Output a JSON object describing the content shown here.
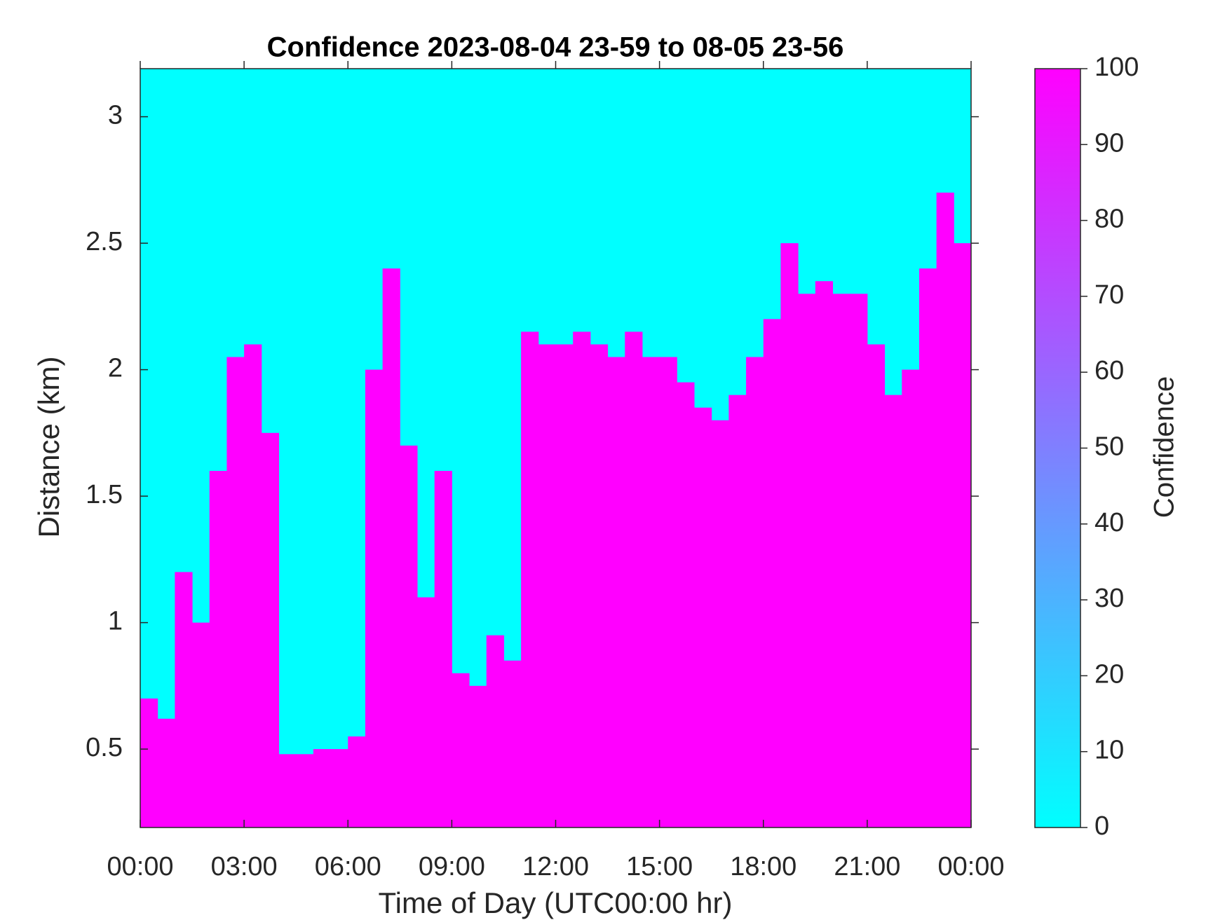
{
  "chart_data": {
    "type": "heatmap",
    "title": "Confidence 2023-08-04 23-59 to 08-05 23-56",
    "xlabel": "Time of Day (UTC00:00 hr)",
    "ylabel": "Distance (km)",
    "colorbar_label": "Confidence",
    "x_edges": [
      0,
      0.5,
      1,
      1.5,
      2,
      2.5,
      3,
      3.5,
      4,
      4.5,
      5,
      5.5,
      6,
      6.5,
      7,
      7.5,
      8,
      8.5,
      9,
      9.5,
      10,
      10.5,
      11,
      11.5,
      12,
      12.5,
      13,
      13.5,
      14,
      14.5,
      15,
      15.5,
      16,
      16.5,
      17,
      17.5,
      18,
      18.5,
      19,
      19.5,
      20,
      20.5,
      21,
      21.5,
      22,
      22.5,
      23,
      23.5,
      24
    ],
    "values": [
      0.7,
      0.62,
      1.2,
      1.0,
      1.6,
      2.05,
      2.1,
      1.75,
      0.48,
      0.48,
      0.5,
      0.5,
      0.55,
      2.0,
      2.4,
      1.7,
      1.1,
      1.6,
      0.8,
      0.75,
      0.95,
      0.85,
      2.15,
      2.1,
      2.1,
      2.15,
      2.1,
      2.05,
      2.15,
      2.05,
      2.05,
      1.95,
      1.85,
      1.8,
      1.9,
      2.05,
      2.2,
      2.5,
      2.3,
      2.35,
      2.3,
      2.3,
      2.1,
      1.9,
      2.0,
      2.4,
      2.7,
      2.5
    ],
    "xlim": [
      0,
      24
    ],
    "xticks": [
      {
        "value": 0,
        "label": "00:00"
      },
      {
        "value": 3,
        "label": "03:00"
      },
      {
        "value": 6,
        "label": "06:00"
      },
      {
        "value": 9,
        "label": "09:00"
      },
      {
        "value": 12,
        "label": "12:00"
      },
      {
        "value": 15,
        "label": "15:00"
      },
      {
        "value": 18,
        "label": "18:00"
      },
      {
        "value": 21,
        "label": "21:00"
      },
      {
        "value": 24,
        "label": "00:00"
      }
    ],
    "ylim": [
      0.19,
      3.19
    ],
    "yticks": [
      0.5,
      1,
      1.5,
      2,
      2.5,
      3
    ],
    "clim": [
      0,
      100
    ],
    "cticks": [
      0,
      10,
      20,
      30,
      40,
      50,
      60,
      70,
      80,
      90,
      100
    ],
    "colormap": [
      "#00ffff",
      "#ff00ff"
    ]
  }
}
